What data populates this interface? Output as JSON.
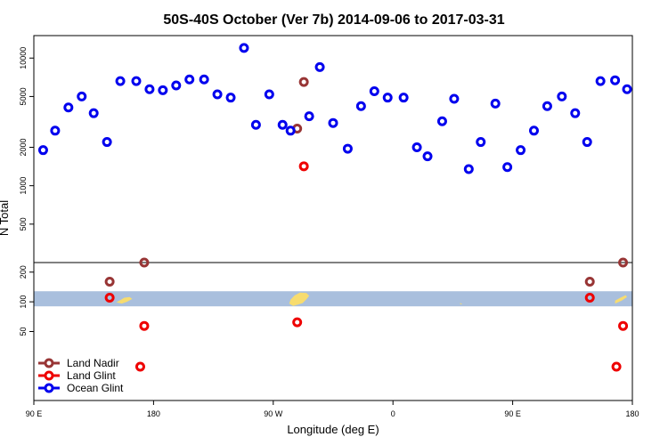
{
  "chart_data": {
    "type": "scatter",
    "title": "50S-40S October (Ver 7b)   2014-09-06 to 2017-03-31",
    "xlabel": "Longitude (deg E)",
    "ylabel": "N Total",
    "x_ticks": [
      {
        "value": 90,
        "label": "90 E"
      },
      {
        "value": 180,
        "label": "180"
      },
      {
        "value": 270,
        "label": "90 W"
      },
      {
        "value": 360,
        "label": "0"
      },
      {
        "value": 450,
        "label": "90 E"
      },
      {
        "value": 540,
        "label": "180"
      }
    ],
    "xlim": [
      90,
      540
    ],
    "y_scale": "log",
    "ylim": [
      10,
      15000
    ],
    "y_break": 250,
    "y_ticks": [
      {
        "value": 50,
        "label": "50"
      },
      {
        "value": 100,
        "label": "100"
      },
      {
        "value": 200,
        "label": "200"
      },
      {
        "value": 500,
        "label": "500"
      },
      {
        "value": 1000,
        "label": "1000"
      },
      {
        "value": 2000,
        "label": "2000"
      },
      {
        "value": 5000,
        "label": "5000"
      },
      {
        "value": 10000,
        "label": "10000"
      }
    ],
    "legend_position": "bottom-left",
    "series": [
      {
        "name": "Land Nadir",
        "color": "#983535",
        "points": [
          {
            "x": 147,
            "y": 160
          },
          {
            "x": 173,
            "y": 250
          },
          {
            "x": 288,
            "y": 2800
          },
          {
            "x": 293,
            "y": 6500
          },
          {
            "x": 508,
            "y": 160
          },
          {
            "x": 533,
            "y": 250
          }
        ]
      },
      {
        "name": "Land Glint",
        "color": "#ee0000",
        "points": [
          {
            "x": 147,
            "y": 110
          },
          {
            "x": 173,
            "y": 57
          },
          {
            "x": 170,
            "y": 22
          },
          {
            "x": 288,
            "y": 62
          },
          {
            "x": 293,
            "y": 1420
          },
          {
            "x": 508,
            "y": 110
          },
          {
            "x": 533,
            "y": 57
          },
          {
            "x": 528,
            "y": 22
          }
        ]
      },
      {
        "name": "Ocean Glint",
        "color": "#0000ee",
        "points": [
          {
            "x": 97,
            "y": 1900
          },
          {
            "x": 106,
            "y": 2700
          },
          {
            "x": 116,
            "y": 4100
          },
          {
            "x": 126,
            "y": 5000
          },
          {
            "x": 135,
            "y": 3700
          },
          {
            "x": 145,
            "y": 2200
          },
          {
            "x": 155,
            "y": 6600
          },
          {
            "x": 167,
            "y": 6600
          },
          {
            "x": 177,
            "y": 5700
          },
          {
            "x": 187,
            "y": 5600
          },
          {
            "x": 197,
            "y": 6100
          },
          {
            "x": 207,
            "y": 6800
          },
          {
            "x": 218,
            "y": 6800
          },
          {
            "x": 228,
            "y": 5200
          },
          {
            "x": 238,
            "y": 4900
          },
          {
            "x": 248,
            "y": 12000
          },
          {
            "x": 257,
            "y": 3000
          },
          {
            "x": 267,
            "y": 5200
          },
          {
            "x": 277,
            "y": 3000
          },
          {
            "x": 283,
            "y": 2700
          },
          {
            "x": 297,
            "y": 3500
          },
          {
            "x": 305,
            "y": 8500
          },
          {
            "x": 315,
            "y": 3100
          },
          {
            "x": 326,
            "y": 1950
          },
          {
            "x": 336,
            "y": 4200
          },
          {
            "x": 346,
            "y": 5500
          },
          {
            "x": 356,
            "y": 4900
          },
          {
            "x": 368,
            "y": 4900
          },
          {
            "x": 378,
            "y": 2000
          },
          {
            "x": 386,
            "y": 1700
          },
          {
            "x": 397,
            "y": 3200
          },
          {
            "x": 406,
            "y": 4800
          },
          {
            "x": 417,
            "y": 1350
          },
          {
            "x": 426,
            "y": 2200
          },
          {
            "x": 437,
            "y": 4400
          },
          {
            "x": 446,
            "y": 1400
          },
          {
            "x": 456,
            "y": 1900
          },
          {
            "x": 466,
            "y": 2700
          },
          {
            "x": 476,
            "y": 4200
          },
          {
            "x": 487,
            "y": 5000
          },
          {
            "x": 497,
            "y": 3700
          },
          {
            "x": 506,
            "y": 2200
          },
          {
            "x": 516,
            "y": 6600
          },
          {
            "x": 527,
            "y": 6700
          },
          {
            "x": 536,
            "y": 5700
          }
        ]
      }
    ],
    "map_inset": {
      "value_range": [
        90,
        128
      ],
      "ocean_color": "#a9bfdd",
      "land_color": "#f7dc6f"
    }
  }
}
